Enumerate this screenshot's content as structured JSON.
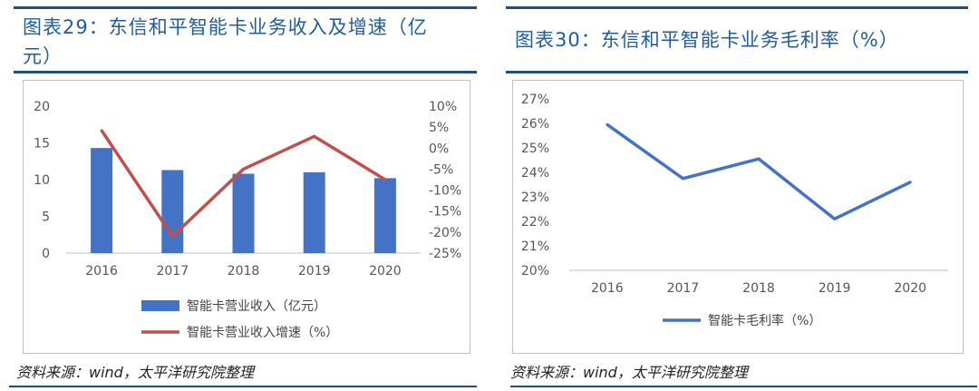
{
  "left": {
    "title": "图表29：东信和平智能卡业务收入及增速（亿元）",
    "source": "资料来源：wind，太平洋研究院整理"
  },
  "right": {
    "title": "图表30：东信和平智能卡业务毛利率（%）",
    "source": "资料来源：wind，太平洋研究院整理"
  },
  "chart_data": [
    {
      "type": "bar+line",
      "categories": [
        "2016",
        "2017",
        "2018",
        "2019",
        "2020"
      ],
      "series": [
        {
          "name": "智能卡营业收入（亿元）",
          "type": "bar",
          "axis": "left",
          "values": [
            14.3,
            11.3,
            10.8,
            11.0,
            10.2
          ],
          "color": "#4472C4"
        },
        {
          "name": "智能卡营业收入增速（%）",
          "type": "line",
          "axis": "right",
          "values": [
            4.2,
            -21.0,
            -5.0,
            2.8,
            -7.5
          ],
          "color": "#C0504D"
        }
      ],
      "y_left": {
        "min": 0,
        "max": 20,
        "step": 5,
        "ticks": [
          "0",
          "5",
          "10",
          "15",
          "20"
        ]
      },
      "y_right": {
        "min": -25,
        "max": 10,
        "step": 5,
        "ticks": [
          "-25%",
          "-20%",
          "-15%",
          "-10%",
          "-5%",
          "0%",
          "5%",
          "10%"
        ]
      },
      "legend_position": "bottom",
      "grid": false
    },
    {
      "type": "line",
      "categories": [
        "2016",
        "2017",
        "2018",
        "2019",
        "2020"
      ],
      "series": [
        {
          "name": "智能卡毛利率（%）",
          "values": [
            25.95,
            23.75,
            24.55,
            22.1,
            23.6
          ],
          "color": "#4472C4"
        }
      ],
      "y": {
        "min": 20,
        "max": 27,
        "step": 1,
        "ticks": [
          "20%",
          "21%",
          "22%",
          "23%",
          "24%",
          "25%",
          "26%",
          "27%"
        ]
      },
      "legend_position": "bottom",
      "grid": false
    }
  ]
}
